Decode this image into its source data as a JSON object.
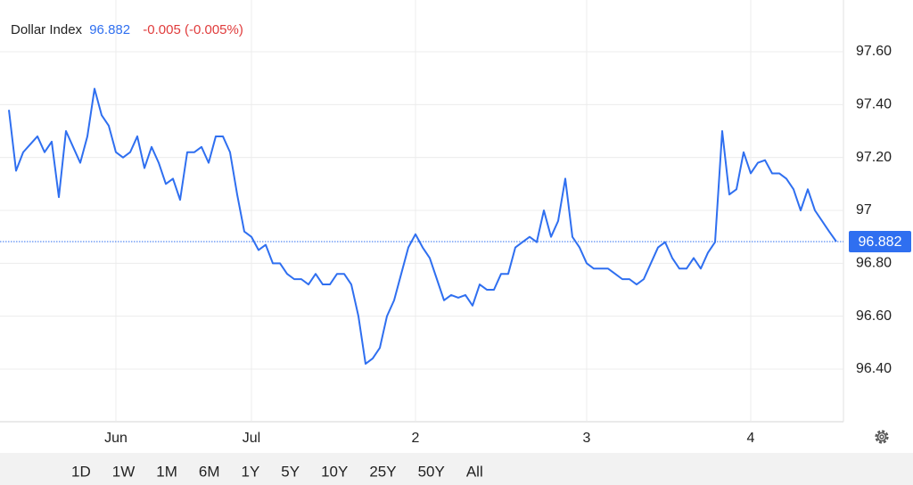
{
  "header": {
    "name": "Dollar Index",
    "change": "-0.005 (-0.005%)"
  },
  "chart_data": {
    "type": "line",
    "last_value": 96.882,
    "last_value_label": "96.882",
    "categories": [
      null,
      null,
      null,
      null,
      null,
      null,
      null,
      null,
      null,
      null,
      null,
      null,
      null,
      null,
      null,
      "Jun",
      null,
      null,
      null,
      null,
      null,
      null,
      null,
      null,
      null,
      null,
      null,
      null,
      null,
      null,
      null,
      null,
      null,
      null,
      "Jul",
      null,
      null,
      null,
      null,
      null,
      null,
      null,
      null,
      null,
      null,
      null,
      null,
      null,
      null,
      null,
      null,
      null,
      null,
      null,
      null,
      null,
      null,
      "2",
      null,
      null,
      null,
      null,
      null,
      null,
      null,
      null,
      null,
      null,
      null,
      null,
      null,
      null,
      null,
      null,
      null,
      null,
      null,
      null,
      null,
      null,
      null,
      "3",
      null,
      null,
      null,
      null,
      null,
      null,
      null,
      null,
      null,
      null,
      null,
      null,
      null,
      null,
      null,
      null,
      null,
      null,
      null,
      null,
      null,
      null,
      "4",
      null,
      null,
      null,
      null,
      null,
      null,
      null,
      null,
      null,
      null,
      null,
      null
    ],
    "series": [
      {
        "name": "Dollar Index",
        "color": "#2f6ff0",
        "values": [
          97.38,
          97.15,
          97.22,
          97.25,
          97.28,
          97.22,
          97.26,
          97.05,
          97.3,
          97.24,
          97.18,
          97.28,
          97.46,
          97.36,
          97.32,
          97.22,
          97.2,
          97.22,
          97.28,
          97.16,
          97.24,
          97.18,
          97.1,
          97.12,
          97.04,
          97.22,
          97.22,
          97.24,
          97.18,
          97.28,
          97.28,
          97.22,
          97.06,
          96.92,
          96.9,
          96.85,
          96.87,
          96.8,
          96.8,
          96.76,
          96.74,
          96.74,
          96.72,
          96.76,
          96.72,
          96.72,
          96.76,
          96.76,
          96.72,
          96.6,
          96.42,
          96.44,
          96.48,
          96.6,
          96.66,
          96.76,
          96.86,
          96.91,
          96.86,
          96.82,
          96.74,
          96.66,
          96.68,
          96.67,
          96.68,
          96.64,
          96.72,
          96.7,
          96.7,
          96.76,
          96.76,
          96.86,
          96.88,
          96.9,
          96.88,
          97.0,
          96.9,
          96.96,
          97.12,
          96.9,
          96.86,
          96.8,
          96.78,
          96.78,
          96.78,
          96.76,
          96.74,
          96.74,
          96.72,
          96.74,
          96.8,
          96.86,
          96.88,
          96.82,
          96.78,
          96.78,
          96.82,
          96.78,
          96.84,
          96.88,
          97.3,
          97.06,
          97.08,
          97.22,
          97.14,
          97.18,
          97.19,
          97.14,
          97.14,
          97.12,
          97.08,
          97.0,
          97.08,
          97.0,
          96.96,
          96.92,
          96.882
        ]
      }
    ],
    "ylim": [
      96.2,
      97.8
    ],
    "yticks": [
      {
        "value": 96.4,
        "label": "96.40"
      },
      {
        "value": 96.6,
        "label": "96.60"
      },
      {
        "value": 96.8,
        "label": "96.80"
      },
      97,
      {
        "value": 97.2,
        "label": "97.20"
      },
      {
        "value": 97.4,
        "label": "97.40"
      },
      {
        "value": 97.6,
        "label": "97.60"
      }
    ],
    "grid": true
  },
  "range_buttons": [
    "1D",
    "1W",
    "1M",
    "6M",
    "1Y",
    "5Y",
    "10Y",
    "25Y",
    "50Y",
    "All"
  ],
  "active_range": "1W"
}
